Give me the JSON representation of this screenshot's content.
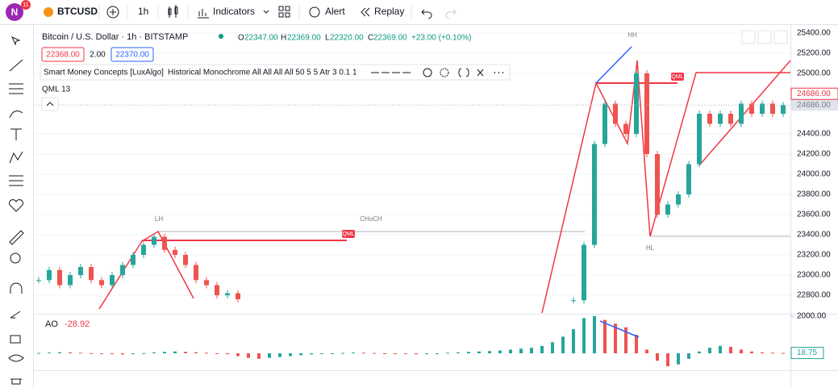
{
  "toolbar": {
    "avatar": "N",
    "badge": "11",
    "symbol": "BTCUSD",
    "interval": "1h",
    "indicators": "Indicators",
    "alert": "Alert",
    "replay": "Replay"
  },
  "legend": {
    "title": "Bitcoin / U.S. Dollar · 1h · BITSTAMP",
    "open_label": "O",
    "open": "22347.00",
    "high_label": "H",
    "high": "22369.00",
    "low_label": "L",
    "low": "22320.00",
    "close_label": "C",
    "close": "22369.00",
    "change": "+23.00 (+0.10%)",
    "bid": "22368.00",
    "spread": "2.00",
    "ask": "22370.00",
    "indicator_name": "Smart Money Concepts [LuxAlgo]",
    "indicator_params": "Historical Monochrome All All All All 50 5 5 Atr 3 0.1 1",
    "qml": "QML 13"
  },
  "chart_data": {
    "type": "candlestick",
    "values": [
      22950,
      23050,
      22900,
      23000,
      23080,
      22950,
      22900,
      23000,
      23100,
      23200,
      23300,
      23380,
      23250,
      23200,
      23100,
      22950,
      22900,
      22800,
      22820,
      22760,
      null,
      null,
      null,
      null,
      null,
      null,
      null,
      null,
      null,
      null,
      null,
      null,
      null,
      null,
      null,
      null,
      null,
      null,
      null,
      null,
      null,
      null,
      null,
      null,
      null,
      null,
      null,
      null,
      null,
      null,
      null,
      22750,
      23300,
      24300,
      24700,
      24500,
      24400,
      25000,
      24200,
      23600,
      23700,
      23800,
      24100,
      24600,
      24500,
      24600,
      24500,
      24700,
      24600,
      24700,
      24600,
      24686
    ],
    "ylim": [
      22624,
      25448
    ],
    "yticks": [
      {
        "value": 25400,
        "label": "25400.00"
      },
      {
        "value": 25200,
        "label": "25200.00"
      },
      {
        "value": 25000,
        "label": "25000.00"
      },
      {
        "value": 24400,
        "label": "24400.00"
      },
      {
        "value": 24200,
        "label": "24200.00"
      },
      {
        "value": 24000,
        "label": "24000.00"
      },
      {
        "value": 23800,
        "label": "23800.00"
      },
      {
        "value": 23600,
        "label": "23600.00"
      },
      {
        "value": 23400,
        "label": "23400.00"
      },
      {
        "value": 23200,
        "label": "23200.00"
      },
      {
        "value": 23000,
        "label": "23000.00"
      },
      {
        "value": 22800,
        "label": "22800.00"
      }
    ],
    "last_price": {
      "value": 24686,
      "label": "24686.00"
    },
    "annotations": [
      "HH",
      "LH",
      "HL",
      "CHoCH",
      "QML",
      "QML"
    ]
  },
  "oscillator": {
    "type": "histogram",
    "name": "AO",
    "value_label": "-28.92",
    "values": [
      20,
      40,
      60,
      50,
      30,
      10,
      -20,
      -40,
      -60,
      -30,
      10,
      50,
      80,
      100,
      80,
      60,
      30,
      0,
      -50,
      -150,
      -250,
      -300,
      -250,
      -200,
      -150,
      -100,
      -60,
      -30,
      0,
      20,
      40,
      30,
      20,
      0,
      -20,
      -40,
      -50,
      -30,
      0,
      30,
      50,
      80,
      100,
      120,
      150,
      200,
      250,
      300,
      400,
      600,
      900,
      1300,
      1900,
      2000,
      1800,
      1600,
      1400,
      1000,
      200,
      -400,
      -700,
      -600,
      -300,
      100,
      300,
      400,
      350,
      200,
      100,
      50,
      30,
      18.75
    ],
    "ylim": [
      -870,
      2087
    ],
    "yticks": [
      {
        "value": 2000,
        "label": "2000.00"
      }
    ],
    "last": {
      "value": 18.75,
      "label": "18.75"
    }
  }
}
